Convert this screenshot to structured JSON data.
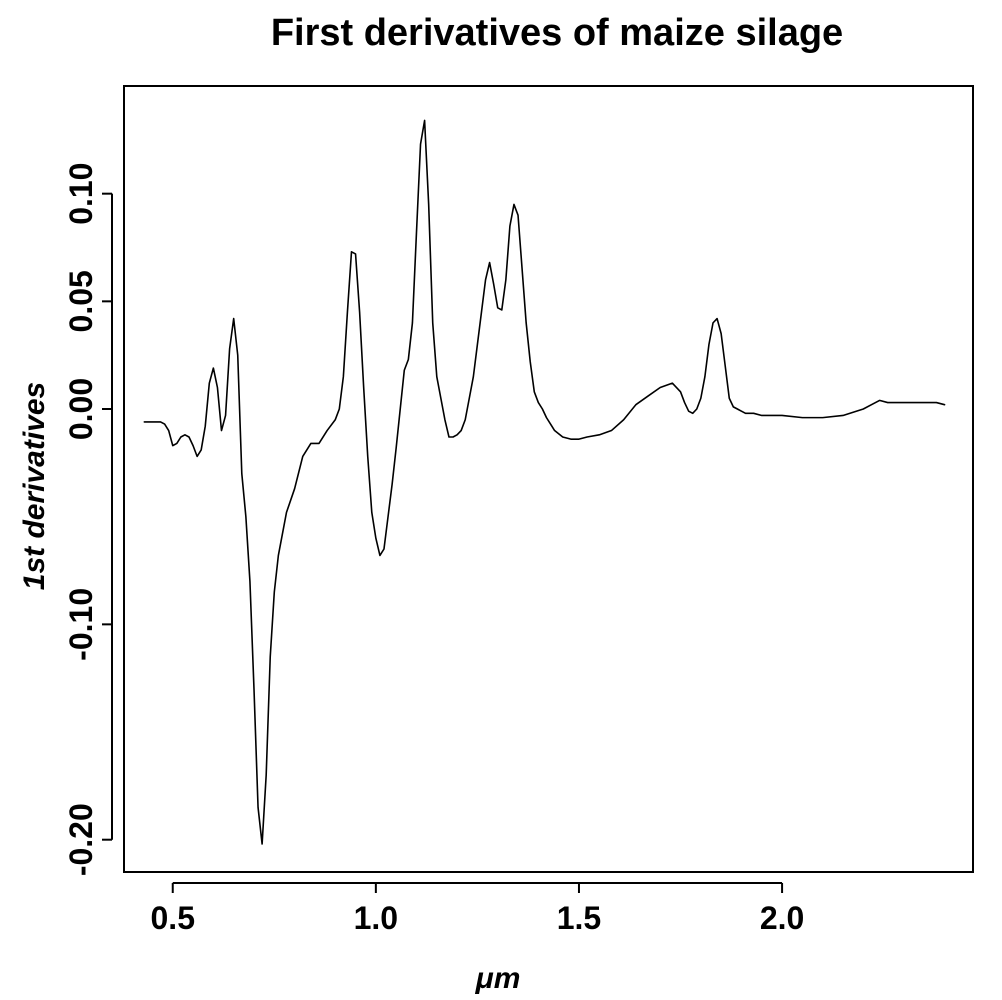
{
  "chart_data": {
    "type": "line",
    "title": "First derivatives of maize silage",
    "xlabel": "μm",
    "ylabel": "1st derivatives",
    "xlim": [
      0.38,
      2.47
    ],
    "ylim": [
      -0.215,
      0.15
    ],
    "grid": false,
    "legend": "none",
    "x_ticks": [
      {
        "value": 0.5,
        "label": "0.5"
      },
      {
        "value": 1.0,
        "label": "1.0"
      },
      {
        "value": 1.5,
        "label": "1.5"
      },
      {
        "value": 2.0,
        "label": "2.0"
      }
    ],
    "y_ticks": [
      {
        "value": -0.2,
        "label": "-0.20"
      },
      {
        "value": -0.1,
        "label": "-0.10"
      },
      {
        "value": 0.0,
        "label": "0.00"
      },
      {
        "value": 0.05,
        "label": "0.05"
      },
      {
        "value": 0.1,
        "label": "0.10"
      }
    ],
    "series": [
      {
        "color": "#000000",
        "x": [
          0.43,
          0.45,
          0.47,
          0.48,
          0.49,
          0.5,
          0.51,
          0.52,
          0.53,
          0.54,
          0.55,
          0.56,
          0.57,
          0.58,
          0.59,
          0.6,
          0.61,
          0.62,
          0.63,
          0.64,
          0.65,
          0.66,
          0.67,
          0.68,
          0.69,
          0.7,
          0.71,
          0.72,
          0.73,
          0.74,
          0.75,
          0.76,
          0.78,
          0.8,
          0.82,
          0.84,
          0.86,
          0.88,
          0.9,
          0.91,
          0.92,
          0.93,
          0.94,
          0.95,
          0.96,
          0.97,
          0.98,
          0.99,
          1.0,
          1.01,
          1.02,
          1.03,
          1.04,
          1.05,
          1.06,
          1.07,
          1.08,
          1.09,
          1.1,
          1.11,
          1.12,
          1.13,
          1.14,
          1.15,
          1.16,
          1.17,
          1.18,
          1.19,
          1.2,
          1.21,
          1.22,
          1.23,
          1.24,
          1.25,
          1.26,
          1.27,
          1.28,
          1.29,
          1.3,
          1.31,
          1.32,
          1.33,
          1.34,
          1.35,
          1.36,
          1.37,
          1.38,
          1.39,
          1.4,
          1.41,
          1.42,
          1.43,
          1.44,
          1.46,
          1.48,
          1.5,
          1.52,
          1.55,
          1.58,
          1.61,
          1.64,
          1.67,
          1.7,
          1.73,
          1.75,
          1.76,
          1.77,
          1.78,
          1.79,
          1.8,
          1.81,
          1.82,
          1.83,
          1.84,
          1.85,
          1.86,
          1.87,
          1.88,
          1.89,
          1.9,
          1.91,
          1.92,
          1.93,
          1.95,
          1.98,
          2.0,
          2.05,
          2.1,
          2.15,
          2.2,
          2.22,
          2.24,
          2.26,
          2.28,
          2.3,
          2.33,
          2.36,
          2.38,
          2.4
        ],
        "y": [
          -0.006,
          -0.006,
          -0.006,
          -0.007,
          -0.01,
          -0.017,
          -0.016,
          -0.013,
          -0.012,
          -0.013,
          -0.017,
          -0.022,
          -0.019,
          -0.008,
          0.012,
          0.019,
          0.01,
          -0.01,
          -0.003,
          0.028,
          0.042,
          0.025,
          -0.03,
          -0.05,
          -0.08,
          -0.13,
          -0.185,
          -0.202,
          -0.17,
          -0.115,
          -0.085,
          -0.068,
          -0.048,
          -0.037,
          -0.022,
          -0.016,
          -0.016,
          -0.01,
          -0.005,
          0.0,
          0.015,
          0.045,
          0.073,
          0.072,
          0.045,
          0.01,
          -0.022,
          -0.048,
          -0.06,
          -0.068,
          -0.065,
          -0.05,
          -0.035,
          -0.018,
          0.0,
          0.018,
          0.023,
          0.04,
          0.082,
          0.123,
          0.134,
          0.095,
          0.04,
          0.015,
          0.005,
          -0.005,
          -0.013,
          -0.013,
          -0.012,
          -0.01,
          -0.005,
          0.005,
          0.015,
          0.03,
          0.045,
          0.06,
          0.068,
          0.058,
          0.047,
          0.046,
          0.06,
          0.085,
          0.095,
          0.09,
          0.065,
          0.04,
          0.022,
          0.008,
          0.003,
          0.0,
          -0.004,
          -0.007,
          -0.01,
          -0.013,
          -0.014,
          -0.014,
          -0.013,
          -0.012,
          -0.01,
          -0.005,
          0.002,
          0.006,
          0.01,
          0.012,
          0.008,
          0.003,
          -0.001,
          -0.002,
          0.0,
          0.005,
          0.015,
          0.03,
          0.04,
          0.042,
          0.035,
          0.02,
          0.005,
          0.001,
          0.0,
          -0.001,
          -0.002,
          -0.002,
          -0.002,
          -0.003,
          -0.003,
          -0.003,
          -0.004,
          -0.004,
          -0.003,
          0.0,
          0.002,
          0.004,
          0.003,
          0.003,
          0.003,
          0.003,
          0.003,
          0.003,
          0.002
        ]
      }
    ]
  }
}
